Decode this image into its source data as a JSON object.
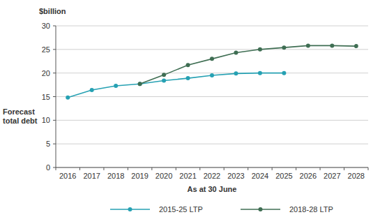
{
  "chart_data": {
    "type": "line",
    "y_label": "Forecast total debt",
    "x_label": "As at 30 June",
    "annotations": [
      "$billion"
    ],
    "categories": [
      "2016",
      "2017",
      "2018",
      "2019",
      "2020",
      "2021",
      "2022",
      "2023",
      "2024",
      "2025",
      "2026",
      "2027",
      "2028"
    ],
    "series": [
      {
        "name": "2015-25 LTP",
        "color": "#26a1b3",
        "marker": "circle",
        "values": [
          14.8,
          16.4,
          17.3,
          17.7,
          18.4,
          18.9,
          19.5,
          19.9,
          20.0,
          20.0,
          null,
          null,
          null
        ]
      },
      {
        "name": "2018-28 LTP",
        "color": "#3f6e53",
        "marker": "circle",
        "values": [
          null,
          null,
          null,
          17.7,
          19.6,
          21.7,
          23.0,
          24.3,
          25.0,
          25.4,
          25.8,
          25.8,
          25.7
        ]
      }
    ],
    "ylim": [
      0,
      30
    ],
    "yticks": [
      0,
      5,
      10,
      15,
      20,
      25,
      30
    ],
    "grid": true,
    "legend": "bottom"
  }
}
